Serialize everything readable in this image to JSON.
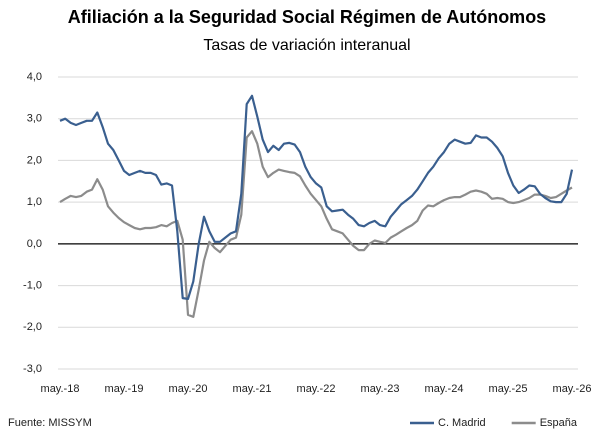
{
  "chart_data": {
    "type": "line",
    "title": "Afiliación a la Seguridad Social Régimen de Autónomos",
    "subtitle": "Tasas de variación interanual",
    "source": "Fuente: MISSYM",
    "categories": [
      "may.-18",
      null,
      null,
      null,
      null,
      null,
      null,
      null,
      null,
      null,
      null,
      null,
      "may.-19",
      null,
      null,
      null,
      null,
      null,
      null,
      null,
      null,
      null,
      null,
      null,
      "may.-20",
      null,
      null,
      null,
      null,
      null,
      null,
      null,
      null,
      null,
      null,
      null,
      "may.-21",
      null,
      null,
      null,
      null,
      null,
      null,
      null,
      null,
      null,
      null,
      null,
      "may.-22",
      null,
      null,
      null,
      null,
      null,
      null,
      null,
      null,
      null,
      null,
      null,
      "may.-23",
      null,
      null,
      null,
      null,
      null,
      null,
      null,
      null,
      null,
      null,
      null,
      "may.-24",
      null,
      null,
      null,
      null,
      null,
      null,
      null,
      null,
      null,
      null,
      null,
      "may.-25",
      null,
      null,
      null,
      null,
      null,
      null,
      null,
      null,
      null,
      null,
      null,
      "may.-26"
    ],
    "series": [
      {
        "name": "C. Madrid",
        "color": "#3a5f8f",
        "values": [
          2.95,
          3.0,
          2.9,
          2.85,
          2.9,
          2.95,
          2.95,
          3.15,
          2.8,
          2.4,
          2.25,
          2.0,
          1.75,
          1.65,
          1.7,
          1.75,
          1.7,
          1.7,
          1.65,
          1.42,
          1.45,
          1.4,
          0.3,
          -1.3,
          -1.32,
          -0.9,
          0.0,
          0.65,
          0.3,
          0.05,
          0.05,
          0.15,
          0.25,
          0.3,
          1.2,
          3.35,
          3.55,
          3.05,
          2.5,
          2.2,
          2.35,
          2.25,
          2.4,
          2.42,
          2.38,
          2.2,
          1.85,
          1.6,
          1.45,
          1.35,
          0.9,
          0.78,
          0.8,
          0.82,
          0.7,
          0.6,
          0.45,
          0.42,
          0.5,
          0.55,
          0.45,
          0.42,
          0.65,
          0.8,
          0.95,
          1.05,
          1.15,
          1.3,
          1.5,
          1.7,
          1.85,
          2.05,
          2.2,
          2.4,
          2.5,
          2.45,
          2.4,
          2.42,
          2.6,
          2.55,
          2.55,
          2.45,
          2.3,
          2.1,
          1.7,
          1.4,
          1.22,
          1.3,
          1.4,
          1.38,
          1.2,
          1.1,
          1.02,
          1.0,
          1.0,
          1.2,
          1.78
        ]
      },
      {
        "name": "España",
        "color": "#8c8c8c",
        "values": [
          1.0,
          1.08,
          1.15,
          1.12,
          1.15,
          1.25,
          1.3,
          1.55,
          1.3,
          0.9,
          0.75,
          0.62,
          0.52,
          0.45,
          0.38,
          0.35,
          0.38,
          0.38,
          0.4,
          0.45,
          0.42,
          0.5,
          0.55,
          0.1,
          -1.7,
          -1.75,
          -1.1,
          -0.4,
          0.05,
          -0.1,
          -0.2,
          -0.05,
          0.1,
          0.15,
          0.7,
          2.55,
          2.7,
          2.4,
          1.85,
          1.6,
          1.7,
          1.78,
          1.75,
          1.72,
          1.7,
          1.62,
          1.4,
          1.2,
          1.05,
          0.9,
          0.6,
          0.35,
          0.3,
          0.25,
          0.1,
          -0.05,
          -0.15,
          -0.15,
          0.0,
          0.08,
          0.05,
          0.02,
          0.15,
          0.22,
          0.3,
          0.38,
          0.45,
          0.55,
          0.8,
          0.92,
          0.9,
          0.98,
          1.05,
          1.1,
          1.12,
          1.12,
          1.18,
          1.25,
          1.28,
          1.25,
          1.2,
          1.08,
          1.1,
          1.08,
          1.0,
          0.98,
          1.0,
          1.05,
          1.1,
          1.18,
          1.18,
          1.15,
          1.1,
          1.12,
          1.2,
          1.28,
          1.35
        ]
      }
    ],
    "ylim": [
      -3,
      4
    ],
    "yticks": [
      {
        "value": -3,
        "label": "-3,0"
      },
      {
        "value": -2,
        "label": "-2,0"
      },
      {
        "value": -1,
        "label": "-1,0"
      },
      {
        "value": 0,
        "label": "0,0"
      },
      {
        "value": 1,
        "label": "1,0"
      },
      {
        "value": 2,
        "label": "2,0"
      },
      {
        "value": 3,
        "label": "3,0"
      },
      {
        "value": 4,
        "label": "4,0"
      }
    ],
    "grid": true,
    "legend": "bottom-right"
  }
}
